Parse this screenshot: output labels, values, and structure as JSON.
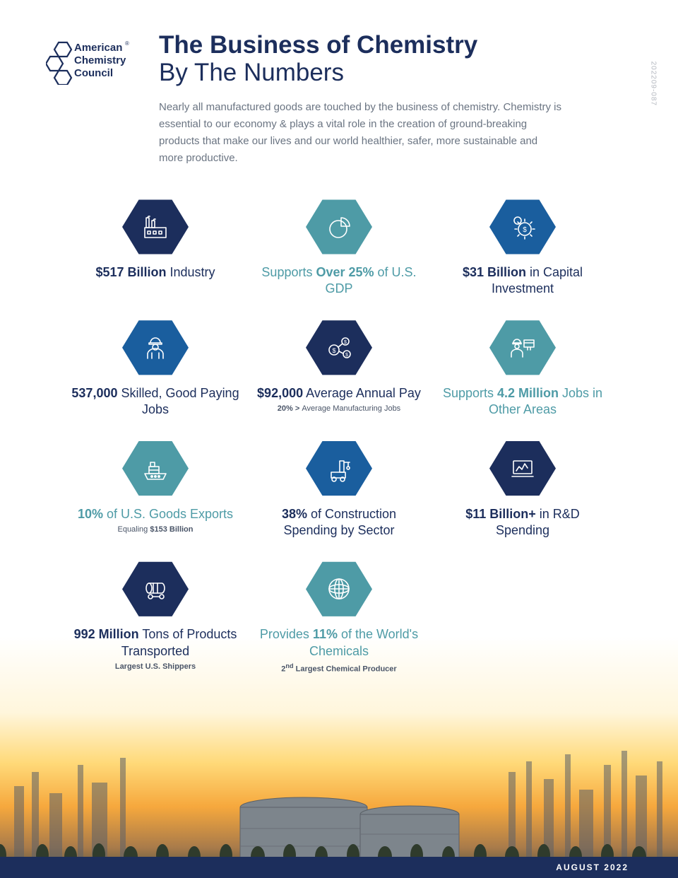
{
  "doc_code": "202209-087",
  "logo": {
    "line1": "American",
    "line2": "Chemistry",
    "line3": "Council",
    "reg": "®"
  },
  "header": {
    "title_bold": "The Business of Chemistry",
    "title_light": "By The Numbers",
    "intro": "Nearly all manufactured goods are touched by the business of chemistry. Chemistry is essential to our economy & plays a vital role in the creation of ground-breaking products that make our lives and our world healthier, safer, more sustainable and more productive."
  },
  "colors": {
    "navy": "#1c2e5c",
    "blue": "#1a5e9e",
    "teal": "#4e9ba6",
    "text_navy": "#1c2e5c",
    "text_teal": "#4e9ba6",
    "text_gray": "#6a7482"
  },
  "footer": {
    "date": "AUGUST 2022"
  },
  "cells": [
    {
      "icon": "factory",
      "hex_color": "#1c2e5c",
      "text_color": "#1c2e5c",
      "segments": [
        {
          "t": "$517 Billion",
          "b": true
        },
        {
          "t": " Industry",
          "b": false
        }
      ]
    },
    {
      "icon": "pie",
      "hex_color": "#4e9ba6",
      "text_color": "#4e9ba6",
      "segments": [
        {
          "t": "Supports ",
          "b": false
        },
        {
          "t": "Over 25%",
          "b": true
        },
        {
          "t": " of U.S. GDP",
          "b": false
        }
      ]
    },
    {
      "icon": "gears",
      "hex_color": "#1a5e9e",
      "text_color": "#1c2e5c",
      "segments": [
        {
          "t": "$31 Billion",
          "b": true
        },
        {
          "t": " in Capital Investment",
          "b": false
        }
      ]
    },
    {
      "icon": "worker",
      "hex_color": "#1a5e9e",
      "text_color": "#1c2e5c",
      "segments": [
        {
          "t": "537,000",
          "b": true
        },
        {
          "t": " Skilled, Good Paying Jobs",
          "b": false
        }
      ]
    },
    {
      "icon": "money",
      "hex_color": "#1c2e5c",
      "text_color": "#1c2e5c",
      "segments": [
        {
          "t": "$92,000",
          "b": true
        },
        {
          "t": " Average Annual Pay",
          "b": false
        }
      ],
      "sub": [
        {
          "t": "20% > ",
          "b": true
        },
        {
          "t": "Average Manufacturing Jobs",
          "b": false
        }
      ]
    },
    {
      "icon": "workers",
      "hex_color": "#4e9ba6",
      "text_color": "#4e9ba6",
      "segments": [
        {
          "t": "Supports ",
          "b": false
        },
        {
          "t": "4.2 Million",
          "b": true
        },
        {
          "t": " Jobs in Other Areas",
          "b": false
        }
      ]
    },
    {
      "icon": "ship",
      "hex_color": "#4e9ba6",
      "text_color": "#4e9ba6",
      "segments": [
        {
          "t": "10%",
          "b": true
        },
        {
          "t": " of U.S. Goods Exports",
          "b": false
        }
      ],
      "sub": [
        {
          "t": "Equaling ",
          "b": false
        },
        {
          "t": "$153 Billion",
          "b": true
        }
      ]
    },
    {
      "icon": "crane",
      "hex_color": "#1a5e9e",
      "text_color": "#1c2e5c",
      "segments": [
        {
          "t": "38%",
          "b": true
        },
        {
          "t": " of Construction Spending by Sector",
          "b": false
        }
      ]
    },
    {
      "icon": "laptop",
      "hex_color": "#1c2e5c",
      "text_color": "#1c2e5c",
      "segments": [
        {
          "t": "$11 Billion+",
          "b": true
        },
        {
          "t": " in R&D Spending",
          "b": false
        }
      ]
    },
    {
      "icon": "tanker",
      "hex_color": "#1c2e5c",
      "text_color": "#1c2e5c",
      "segments": [
        {
          "t": "992 Million",
          "b": true
        },
        {
          "t": " Tons of Products Transported",
          "b": false
        }
      ],
      "sub": [
        {
          "t": "Largest U.S. Shippers",
          "b": true
        }
      ]
    },
    {
      "icon": "globe",
      "hex_color": "#4e9ba6",
      "text_color": "#4e9ba6",
      "segments": [
        {
          "t": "Provides ",
          "b": false
        },
        {
          "t": "11%",
          "b": true
        },
        {
          "t": " of the World's Chemicals",
          "b": false
        }
      ],
      "sub": [
        {
          "t": "2",
          "b": true
        },
        {
          "t": "nd",
          "b": true,
          "sup": true
        },
        {
          "t": " Largest Chemical Producer",
          "b": true
        }
      ]
    }
  ]
}
